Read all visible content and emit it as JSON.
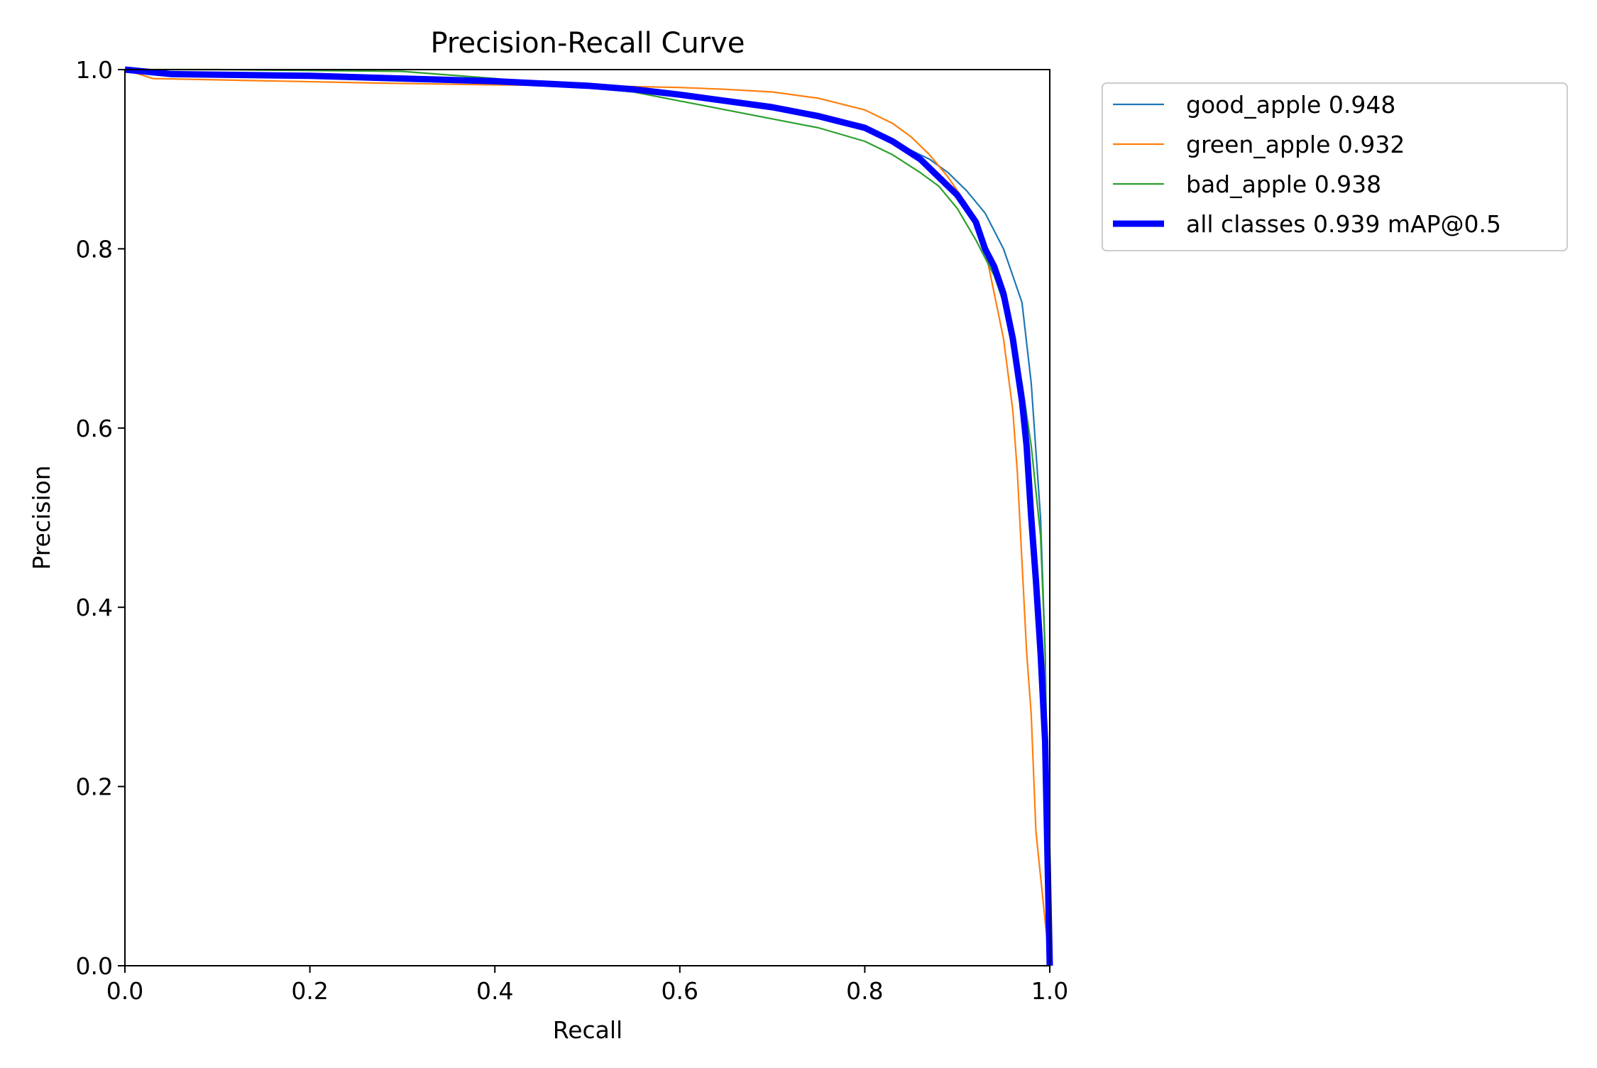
{
  "chart_data": {
    "type": "line",
    "title": "Precision-Recall Curve",
    "xlabel": "Recall",
    "ylabel": "Precision",
    "xlim": [
      0,
      1
    ],
    "ylim": [
      0,
      1
    ],
    "x_ticks": [
      "0.0",
      "0.2",
      "0.4",
      "0.6",
      "0.8",
      "1.0"
    ],
    "y_ticks": [
      "0.0",
      "0.2",
      "0.4",
      "0.6",
      "0.8",
      "1.0"
    ],
    "grid": false,
    "legend_position": "outside-right-top",
    "series": [
      {
        "name": "good_apple 0.948",
        "color": "#1f77b4",
        "style": "thin",
        "x": [
          0.0,
          0.02,
          0.03,
          0.1,
          0.2,
          0.3,
          0.4,
          0.5,
          0.6,
          0.65,
          0.7,
          0.75,
          0.8,
          0.84,
          0.87,
          0.89,
          0.91,
          0.93,
          0.95,
          0.96,
          0.97,
          0.98,
          0.99,
          0.995,
          0.998,
          1.0
        ],
        "y": [
          1.0,
          1.0,
          0.995,
          0.995,
          0.993,
          0.99,
          0.987,
          0.98,
          0.97,
          0.966,
          0.96,
          0.95,
          0.935,
          0.915,
          0.9,
          0.885,
          0.865,
          0.84,
          0.8,
          0.77,
          0.74,
          0.65,
          0.5,
          0.35,
          0.15,
          0.0
        ]
      },
      {
        "name": "green_apple 0.932",
        "color": "#ff7f0e",
        "style": "thin",
        "x": [
          0.0,
          0.03,
          0.27,
          0.4,
          0.5,
          0.6,
          0.65,
          0.7,
          0.75,
          0.8,
          0.83,
          0.85,
          0.87,
          0.89,
          0.91,
          0.93,
          0.94,
          0.95,
          0.96,
          0.965,
          0.97,
          0.975,
          0.98,
          0.985,
          0.99,
          0.995,
          1.0
        ],
        "y": [
          1.0,
          0.99,
          0.985,
          0.983,
          0.982,
          0.98,
          0.978,
          0.975,
          0.968,
          0.955,
          0.94,
          0.925,
          0.905,
          0.88,
          0.85,
          0.8,
          0.75,
          0.7,
          0.62,
          0.55,
          0.45,
          0.35,
          0.28,
          0.15,
          0.1,
          0.05,
          0.0
        ]
      },
      {
        "name": "bad_apple 0.938",
        "color": "#2ca02c",
        "style": "thin",
        "x": [
          0.0,
          0.1,
          0.3,
          0.4,
          0.5,
          0.55,
          0.6,
          0.65,
          0.7,
          0.75,
          0.8,
          0.83,
          0.86,
          0.88,
          0.9,
          0.92,
          0.94,
          0.95,
          0.96,
          0.97,
          0.98,
          0.99,
          0.995,
          1.0
        ],
        "y": [
          1.0,
          1.0,
          0.998,
          0.99,
          0.98,
          0.975,
          0.965,
          0.955,
          0.945,
          0.935,
          0.92,
          0.905,
          0.885,
          0.87,
          0.845,
          0.81,
          0.77,
          0.74,
          0.7,
          0.65,
          0.58,
          0.48,
          0.35,
          0.0
        ]
      },
      {
        "name": "all classes 0.939 mAP@0.5",
        "color": "#0000ff",
        "style": "thick",
        "x": [
          0.0,
          0.05,
          0.2,
          0.3,
          0.4,
          0.5,
          0.55,
          0.6,
          0.65,
          0.7,
          0.75,
          0.8,
          0.83,
          0.86,
          0.88,
          0.9,
          0.92,
          0.93,
          0.94,
          0.95,
          0.96,
          0.97,
          0.975,
          0.98,
          0.985,
          0.99,
          0.995,
          0.998,
          1.0
        ],
        "y": [
          1.0,
          0.995,
          0.993,
          0.99,
          0.987,
          0.982,
          0.978,
          0.972,
          0.965,
          0.958,
          0.948,
          0.935,
          0.92,
          0.9,
          0.88,
          0.86,
          0.83,
          0.8,
          0.78,
          0.75,
          0.7,
          0.63,
          0.58,
          0.5,
          0.43,
          0.35,
          0.25,
          0.1,
          0.0
        ]
      }
    ]
  }
}
